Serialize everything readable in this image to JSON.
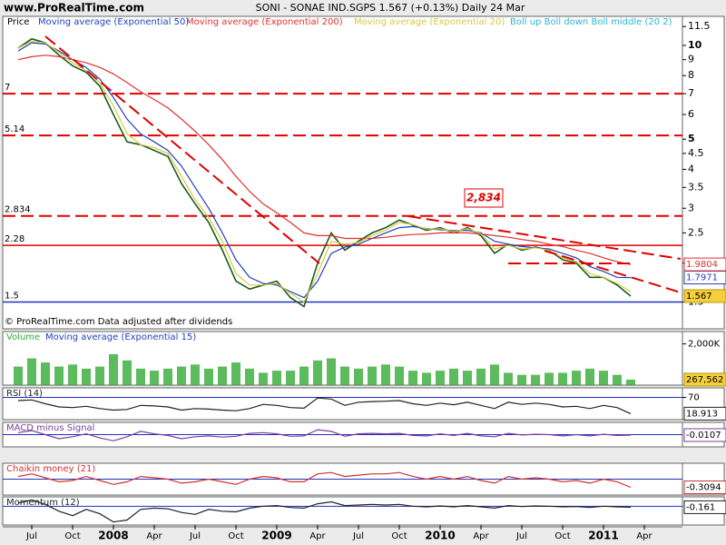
{
  "site": "www.ProRealTime.com",
  "chart_data": [
    {
      "type": "line",
      "title": "SONI - SONAE IND.SGPS   1.567 (+0.13%)   Daily  24 Mar",
      "log_scale": true,
      "categories": [
        null,
        "Jul",
        null,
        null,
        "Oct",
        null,
        null,
        "2008",
        null,
        null,
        "Apr",
        null,
        null,
        "Jul",
        null,
        null,
        "Oct",
        null,
        null,
        "2009",
        null,
        null,
        "Apr",
        null,
        null,
        "Jul",
        null,
        null,
        "Oct",
        null,
        null,
        "2010",
        null,
        null,
        "Apr",
        null,
        null,
        "Jul",
        null,
        null,
        "Oct",
        null,
        null,
        "2011",
        null,
        null,
        "Apr"
      ],
      "series": [
        {
          "name": "Price",
          "color": "#1a5c1a",
          "boxed": true,
          "values": [
            9.8,
            10.5,
            10.2,
            9.3,
            8.6,
            8.2,
            7.4,
            6.0,
            4.9,
            4.8,
            4.6,
            4.4,
            3.6,
            3.1,
            2.7,
            2.2,
            1.75,
            1.65,
            1.7,
            1.75,
            1.55,
            1.45,
            2.0,
            2.5,
            2.2,
            2.35,
            2.5,
            2.6,
            2.75,
            2.65,
            2.55,
            2.6,
            2.5,
            2.6,
            2.45,
            2.15,
            2.3,
            2.2,
            2.25,
            2.2,
            2.05,
            2.0,
            1.8,
            1.8,
            1.7,
            1.567,
            null
          ]
        },
        {
          "name": "Moving average (Exponential 50)",
          "color": "#1f3fbf",
          "boxed": true,
          "values": [
            9.6,
            10.2,
            10.1,
            9.6,
            9.0,
            8.5,
            7.8,
            6.8,
            5.8,
            5.2,
            4.9,
            4.6,
            4.1,
            3.5,
            3.0,
            2.5,
            2.05,
            1.8,
            1.72,
            1.7,
            1.62,
            1.55,
            1.75,
            2.15,
            2.25,
            2.3,
            2.4,
            2.5,
            2.6,
            2.62,
            2.58,
            2.56,
            2.54,
            2.55,
            2.5,
            2.35,
            2.3,
            2.26,
            2.24,
            2.22,
            2.15,
            2.08,
            1.95,
            1.88,
            1.8,
            1.7971,
            null
          ]
        },
        {
          "name": "Moving average (Exponential 200)",
          "color": "#e03030",
          "boxed": true,
          "values": [
            9.0,
            9.2,
            9.3,
            9.2,
            9.0,
            8.8,
            8.5,
            8.1,
            7.6,
            7.1,
            6.7,
            6.3,
            5.8,
            5.3,
            4.8,
            4.3,
            3.8,
            3.4,
            3.1,
            2.9,
            2.7,
            2.5,
            2.45,
            2.45,
            2.4,
            2.4,
            2.4,
            2.42,
            2.45,
            2.47,
            2.48,
            2.5,
            2.5,
            2.5,
            2.48,
            2.45,
            2.42,
            2.38,
            2.35,
            2.3,
            2.26,
            2.2,
            2.15,
            2.08,
            2.02,
            1.9804,
            null
          ]
        },
        {
          "name": "Moving average (Exponential 20)",
          "color": "#d8c840",
          "boxed": false,
          "values": [
            9.8,
            10.3,
            10.2,
            9.5,
            8.8,
            8.3,
            7.6,
            6.4,
            5.2,
            4.8,
            4.7,
            4.5,
            3.8,
            3.2,
            2.8,
            2.35,
            1.85,
            1.7,
            1.7,
            1.72,
            1.6,
            1.5,
            1.85,
            2.35,
            2.3,
            2.33,
            2.45,
            2.55,
            2.7,
            2.66,
            2.57,
            2.58,
            2.52,
            2.58,
            2.48,
            2.22,
            2.28,
            2.22,
            2.24,
            2.2,
            2.08,
            2.02,
            1.85,
            1.8,
            1.72,
            1.62,
            null
          ]
        }
      ],
      "legend_extra": "Boll up Boll down Boll middle (20 2)",
      "ylim": [
        1.23,
        12.4
      ],
      "yticks": [
        11.5,
        10,
        9,
        8,
        7,
        6,
        5,
        4.5,
        4,
        3.5,
        3,
        2.5,
        2,
        1.5
      ],
      "levels": [
        {
          "value": 7,
          "color": "#e00000",
          "dashed": true
        },
        {
          "value": 5.14,
          "color": "#e00000",
          "dashed": true
        },
        {
          "value": 2.834,
          "color": "#e00000",
          "dashed": true
        },
        {
          "value": 2.28,
          "color": "#e00000",
          "dashed": false
        },
        {
          "value": 1.5,
          "color": "#2030c0",
          "dashed": false
        }
      ],
      "annotation": "2,834",
      "footnote": "© ProRealTime.com Data adjusted after dividends"
    },
    {
      "type": "bar",
      "title": "Moving average (Exponential 15)",
      "series": [
        {
          "name": "Volume",
          "color": "#33aa33",
          "boxed": true,
          "values": [
            900000,
            1300000,
            1100000,
            900000,
            1000000,
            800000,
            900000,
            1500000,
            1200000,
            800000,
            700000,
            800000,
            900000,
            1000000,
            800000,
            900000,
            1100000,
            800000,
            600000,
            700000,
            700000,
            900000,
            1200000,
            1300000,
            900000,
            800000,
            900000,
            1000000,
            900000,
            700000,
            600000,
            700000,
            800000,
            700000,
            800000,
            1000000,
            600000,
            500000,
            500000,
            600000,
            600000,
            700000,
            800000,
            700000,
            500000,
            267562,
            null
          ],
          "value_labels": [
            null,
            null,
            null,
            null,
            null,
            null,
            null,
            null,
            null,
            null,
            null,
            null,
            null,
            null,
            null,
            null,
            null,
            null,
            null,
            null,
            null,
            null,
            null,
            null,
            null,
            null,
            null,
            null,
            null,
            null,
            null,
            null,
            null,
            null,
            null,
            null,
            null,
            null,
            null,
            null,
            null,
            null,
            null,
            null,
            null,
            "267,562",
            null
          ]
        }
      ],
      "ylim": [
        0,
        2600000
      ],
      "yticks": [
        {
          "value": 2000000,
          "label": "2,000K"
        }
      ]
    },
    {
      "type": "line",
      "title": "RSI (14)",
      "series": [
        {
          "color": "#222222",
          "boxed": true,
          "values": [
            60,
            62,
            50,
            40,
            38,
            42,
            35,
            30,
            32,
            45,
            43,
            40,
            30,
            35,
            33,
            30,
            28,
            35,
            48,
            45,
            38,
            36,
            68,
            65,
            45,
            55,
            57,
            58,
            60,
            50,
            45,
            52,
            47,
            55,
            45,
            35,
            55,
            48,
            52,
            48,
            40,
            42,
            35,
            45,
            38,
            18.913,
            null
          ]
        }
      ],
      "ylim": [
        0,
        100
      ],
      "yticks": [
        70
      ]
    },
    {
      "type": "line",
      "title": "MACD minus Signal",
      "series": [
        {
          "color": "#7a3fa0",
          "boxed": true,
          "values": [
            0.05,
            0.1,
            0.0,
            -0.1,
            -0.05,
            0.02,
            -0.08,
            -0.15,
            -0.05,
            0.08,
            0.02,
            -0.02,
            -0.1,
            -0.05,
            -0.03,
            -0.06,
            -0.04,
            0.03,
            0.05,
            0.02,
            -0.04,
            -0.03,
            0.12,
            0.08,
            -0.04,
            0.02,
            0.03,
            0.02,
            0.03,
            -0.02,
            -0.03,
            0.02,
            -0.02,
            0.03,
            -0.03,
            -0.05,
            0.03,
            -0.01,
            0.01,
            0.0,
            -0.03,
            0.0,
            -0.03,
            0.01,
            -0.02,
            -0.0107,
            null
          ]
        }
      ],
      "ylim": [
        -0.3,
        0.3
      ],
      "yticks": []
    },
    {
      "type": "line",
      "title": "Chaikin money (21)",
      "series": [
        {
          "color": "#d03030",
          "boxed": true,
          "values": [
            0.1,
            0.2,
            0.05,
            -0.1,
            -0.05,
            0.1,
            -0.05,
            -0.2,
            -0.1,
            0.1,
            0.05,
            0.0,
            -0.15,
            -0.1,
            0.0,
            -0.1,
            -0.2,
            0.0,
            0.1,
            0.05,
            -0.1,
            -0.1,
            0.2,
            0.25,
            0.1,
            0.15,
            0.2,
            0.2,
            0.25,
            0.1,
            0.0,
            0.1,
            0.0,
            0.1,
            -0.05,
            -0.15,
            0.1,
            0.0,
            0.05,
            0.0,
            -0.1,
            -0.05,
            -0.15,
            0.0,
            -0.1,
            -0.3094,
            null
          ]
        }
      ],
      "ylim": [
        -0.6,
        0.6
      ],
      "yticks": []
    },
    {
      "type": "line",
      "title": "Momentum (12)",
      "series": [
        {
          "color": "#222222",
          "boxed": true,
          "values": [
            0.5,
            1.0,
            0.3,
            -0.8,
            -1.5,
            -0.5,
            -1.2,
            -2.5,
            -2.2,
            -0.5,
            -0.3,
            -0.4,
            -1.0,
            -1.3,
            -0.5,
            -0.8,
            -0.9,
            -0.3,
            0.0,
            0.1,
            -0.2,
            -0.3,
            0.4,
            0.7,
            0.1,
            0.2,
            0.3,
            0.2,
            0.3,
            0.0,
            -0.1,
            0.05,
            -0.1,
            0.1,
            -0.1,
            -0.3,
            0.1,
            -0.05,
            0.05,
            0.0,
            -0.1,
            -0.05,
            -0.2,
            0.0,
            -0.1,
            -0.161,
            null
          ]
        }
      ],
      "ylim": [
        -3,
        1.5
      ],
      "yticks": []
    }
  ]
}
